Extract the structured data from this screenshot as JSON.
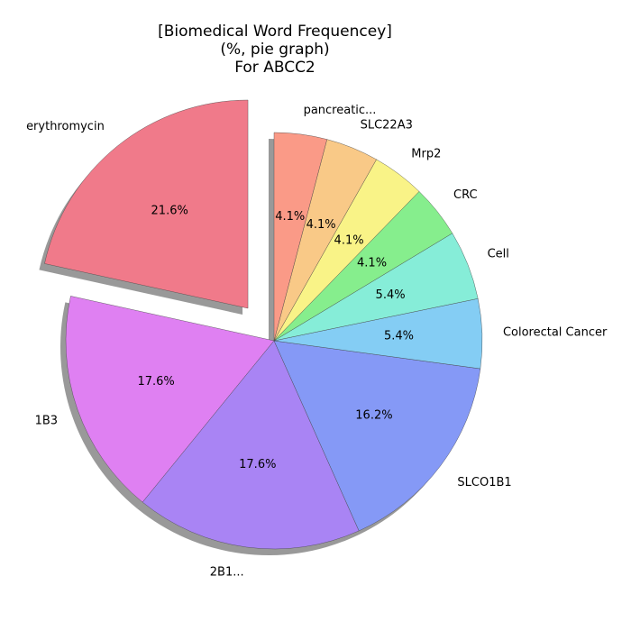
{
  "chart_data": {
    "type": "pie",
    "title": [
      "[Biomedical Word Frequencey]",
      "(%, pie graph)",
      "For ABCC2"
    ],
    "categories": [
      "erythromycin",
      "1B3",
      "2B1...",
      "SLCO1B1",
      "Colorectal Cancer",
      "Cell",
      "CRC",
      "Mrp2",
      "SLC22A3",
      "pancreatic..."
    ],
    "values": [
      21.6,
      17.6,
      17.6,
      16.2,
      5.4,
      5.4,
      4.1,
      4.1,
      4.1,
      4.1
    ],
    "value_labels": [
      "21.6%",
      "17.6%",
      "17.6%",
      "16.2%",
      "5.4%",
      "5.4%",
      "4.1%",
      "4.1%",
      "4.1%",
      "4.1%"
    ],
    "colors": [
      "#f07a8a",
      "#df80f2",
      "#a984f4",
      "#8599f6",
      "#84cdf4",
      "#86edd8",
      "#86ee8d",
      "#f9f387",
      "#f9c987",
      "#fa9a87"
    ],
    "exploded": [
      true,
      false,
      false,
      false,
      false,
      false,
      false,
      false,
      false,
      false
    ],
    "shadow": true,
    "start_angle": 90,
    "direction": "counterclockwise"
  }
}
